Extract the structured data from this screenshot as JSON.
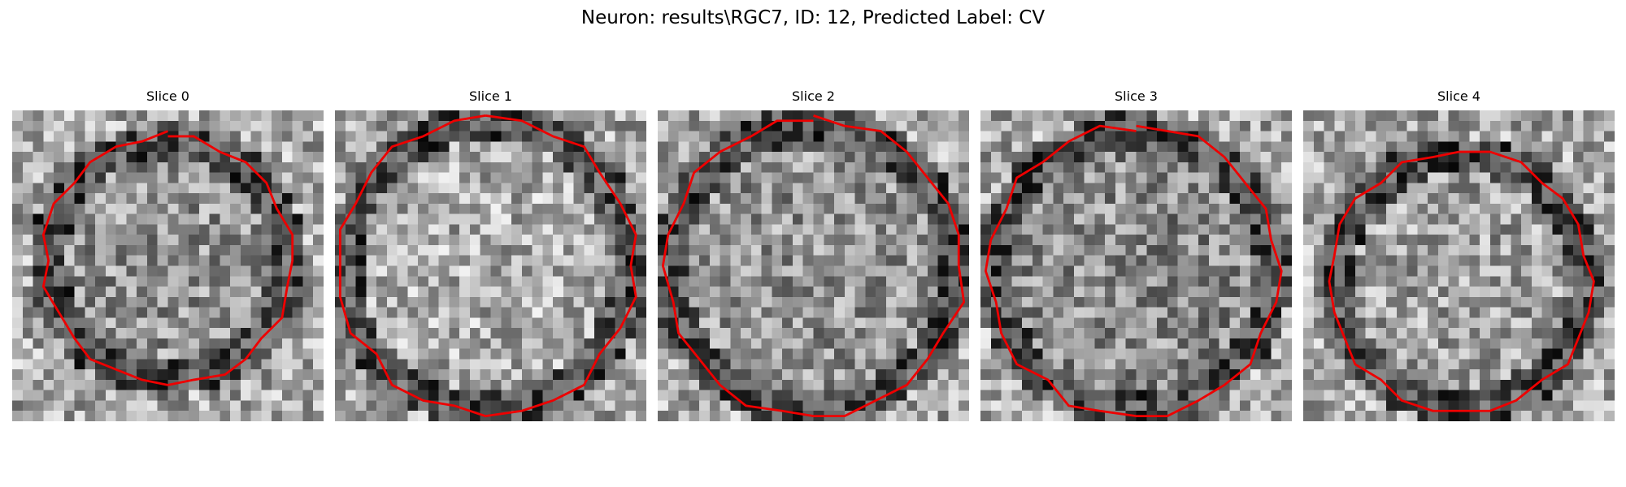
{
  "figure": {
    "title": "Neuron: results\\RGC7, ID: 12, Predicted Label: CV"
  },
  "panels": [
    {
      "title": "Slice 0"
    },
    {
      "title": "Slice 1"
    },
    {
      "title": "Slice 2"
    },
    {
      "title": "Slice 3"
    },
    {
      "title": "Slice 4"
    }
  ],
  "colors": {
    "background": "#ffffff",
    "contour": "#ee0000",
    "colormap": "gray"
  }
}
